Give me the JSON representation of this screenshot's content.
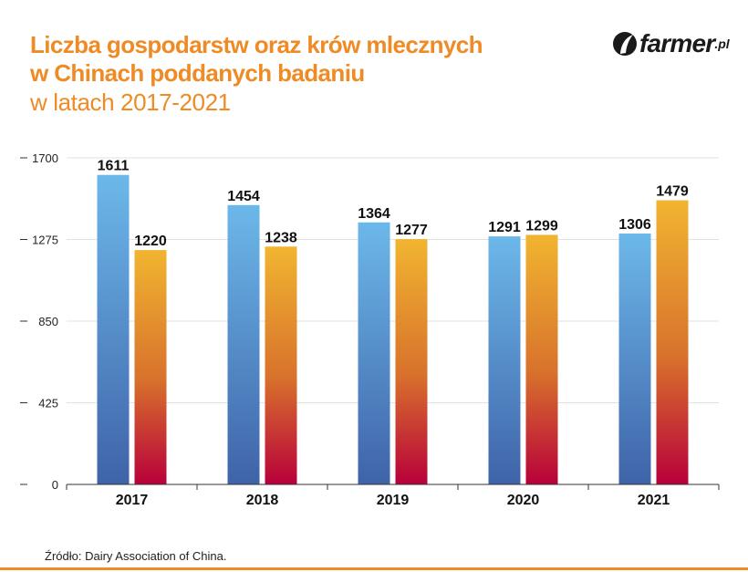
{
  "header": {
    "title_line1": "Liczba gospodarstw oraz krów mlecznych",
    "title_line2": "w Chinach poddanych badaniu",
    "subtitle": "w latach 2017-2021"
  },
  "logo": {
    "name": "farmer",
    "suffix": ".pl",
    "icon": "leaf-icon"
  },
  "source": "Źródło: Dairy Association of China.",
  "colors": {
    "accent": "#f08a24",
    "series1_top": "#6cb8ea",
    "series1_bottom": "#3f63a8",
    "series2_top": "#f1b530",
    "series2_bottom": "#b8003a"
  },
  "chart_data": {
    "type": "bar",
    "categories": [
      "2017",
      "2018",
      "2019",
      "2020",
      "2021"
    ],
    "series": [
      {
        "values": [
          1611,
          1454,
          1364,
          1291,
          1306
        ]
      },
      {
        "values": [
          1220,
          1238,
          1277,
          1299,
          1479
        ]
      }
    ],
    "yticks": [
      0,
      425,
      850,
      1275,
      1700
    ],
    "ylim": [
      0,
      1700
    ],
    "grid": true,
    "legend": "none"
  }
}
